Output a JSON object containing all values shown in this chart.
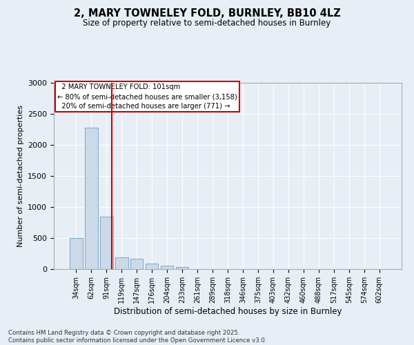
{
  "title1": "2, MARY TOWNELEY FOLD, BURNLEY, BB10 4LZ",
  "title2": "Size of property relative to semi-detached houses in Burnley",
  "xlabel": "Distribution of semi-detached houses by size in Burnley",
  "ylabel": "Number of semi-detached properties",
  "footnote1": "Contains HM Land Registry data © Crown copyright and database right 2025.",
  "footnote2": "Contains public sector information licensed under the Open Government Licence v3.0.",
  "categories": [
    "34sqm",
    "62sqm",
    "91sqm",
    "119sqm",
    "147sqm",
    "176sqm",
    "204sqm",
    "233sqm",
    "261sqm",
    "289sqm",
    "318sqm",
    "346sqm",
    "375sqm",
    "403sqm",
    "432sqm",
    "460sqm",
    "488sqm",
    "517sqm",
    "545sqm",
    "574sqm",
    "602sqm"
  ],
  "values": [
    500,
    2280,
    840,
    190,
    165,
    90,
    55,
    30,
    0,
    0,
    0,
    0,
    0,
    0,
    0,
    0,
    0,
    0,
    0,
    0,
    0
  ],
  "bar_color": "#ccd9e8",
  "bar_edge_color": "#7aaac8",
  "bg_color": "#e8eef5",
  "plot_bg_color": "#e8eef5",
  "grid_color": "#ffffff",
  "vline_color": "#cc0000",
  "annotation_text": "  2 MARY TOWNELEY FOLD: 101sqm  \n← 80% of semi-detached houses are smaller (3,158)\n  20% of semi-detached houses are larger (771) → ",
  "annotation_box_color": "#cc0000",
  "ylim": [
    0,
    3000
  ],
  "yticks": [
    0,
    500,
    1000,
    1500,
    2000,
    2500,
    3000
  ]
}
